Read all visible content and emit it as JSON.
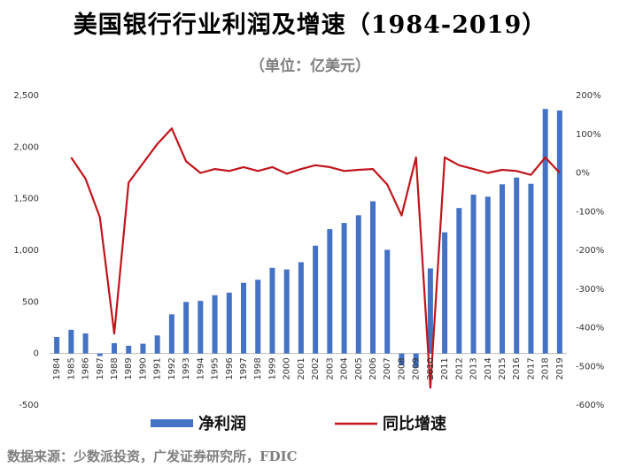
{
  "title": "美国银行行业利润及增速（1984-2019）",
  "subtitle": "（单位：亿美元）",
  "source": "数据来源：少数派投资，广发证券研究所，FDIC",
  "chart_data": {
    "type": "bar+line",
    "categories": [
      "1984",
      "1985",
      "1986",
      "1987",
      "1988",
      "1989",
      "1990",
      "1991",
      "1992",
      "1993",
      "1994",
      "1995",
      "1996",
      "1997",
      "1998",
      "1999",
      "2000",
      "2001",
      "2002",
      "2003",
      "2004",
      "2005",
      "2006",
      "2007",
      "2008",
      "2009",
      "2010",
      "2011",
      "2012",
      "2013",
      "2014",
      "2015",
      "2016",
      "2017",
      "2018",
      "2019"
    ],
    "series": [
      {
        "name": "净利润",
        "type": "bar",
        "axis": "left",
        "color": "#4472c4",
        "values": [
          160,
          230,
          195,
          -25,
          100,
          75,
          95,
          175,
          380,
          500,
          510,
          565,
          590,
          685,
          715,
          830,
          815,
          885,
          1045,
          1205,
          1265,
          1340,
          1475,
          1005,
          -115,
          -135,
          825,
          1175,
          1410,
          1540,
          1520,
          1640,
          1705,
          1645,
          2370,
          2355
        ]
      },
      {
        "name": "同比增速",
        "type": "line",
        "axis": "right",
        "color": "#c0151b",
        "values": [
          null,
          40,
          -15,
          -115,
          -415,
          -25,
          25,
          75,
          115,
          30,
          0,
          10,
          5,
          15,
          5,
          15,
          -2,
          10,
          20,
          15,
          5,
          8,
          10,
          -30,
          -110,
          40,
          -555,
          40,
          20,
          10,
          0,
          8,
          5,
          -5,
          40,
          0
        ]
      }
    ],
    "ylim_left": [
      -500,
      2500
    ],
    "yticks_left": [
      "-500",
      "0",
      "500",
      "1,000",
      "1,500",
      "2,000",
      "2,500"
    ],
    "ylim_right": [
      -600,
      200
    ],
    "yticks_right": [
      "-600%",
      "-500%",
      "-400%",
      "-300%",
      "-200%",
      "-100%",
      "0%",
      "100%",
      "200%"
    ],
    "legend": [
      {
        "label": "净利润",
        "kind": "bar",
        "color": "#4472c4"
      },
      {
        "label": "同比增速",
        "kind": "line",
        "color": "#c0151b"
      }
    ]
  }
}
